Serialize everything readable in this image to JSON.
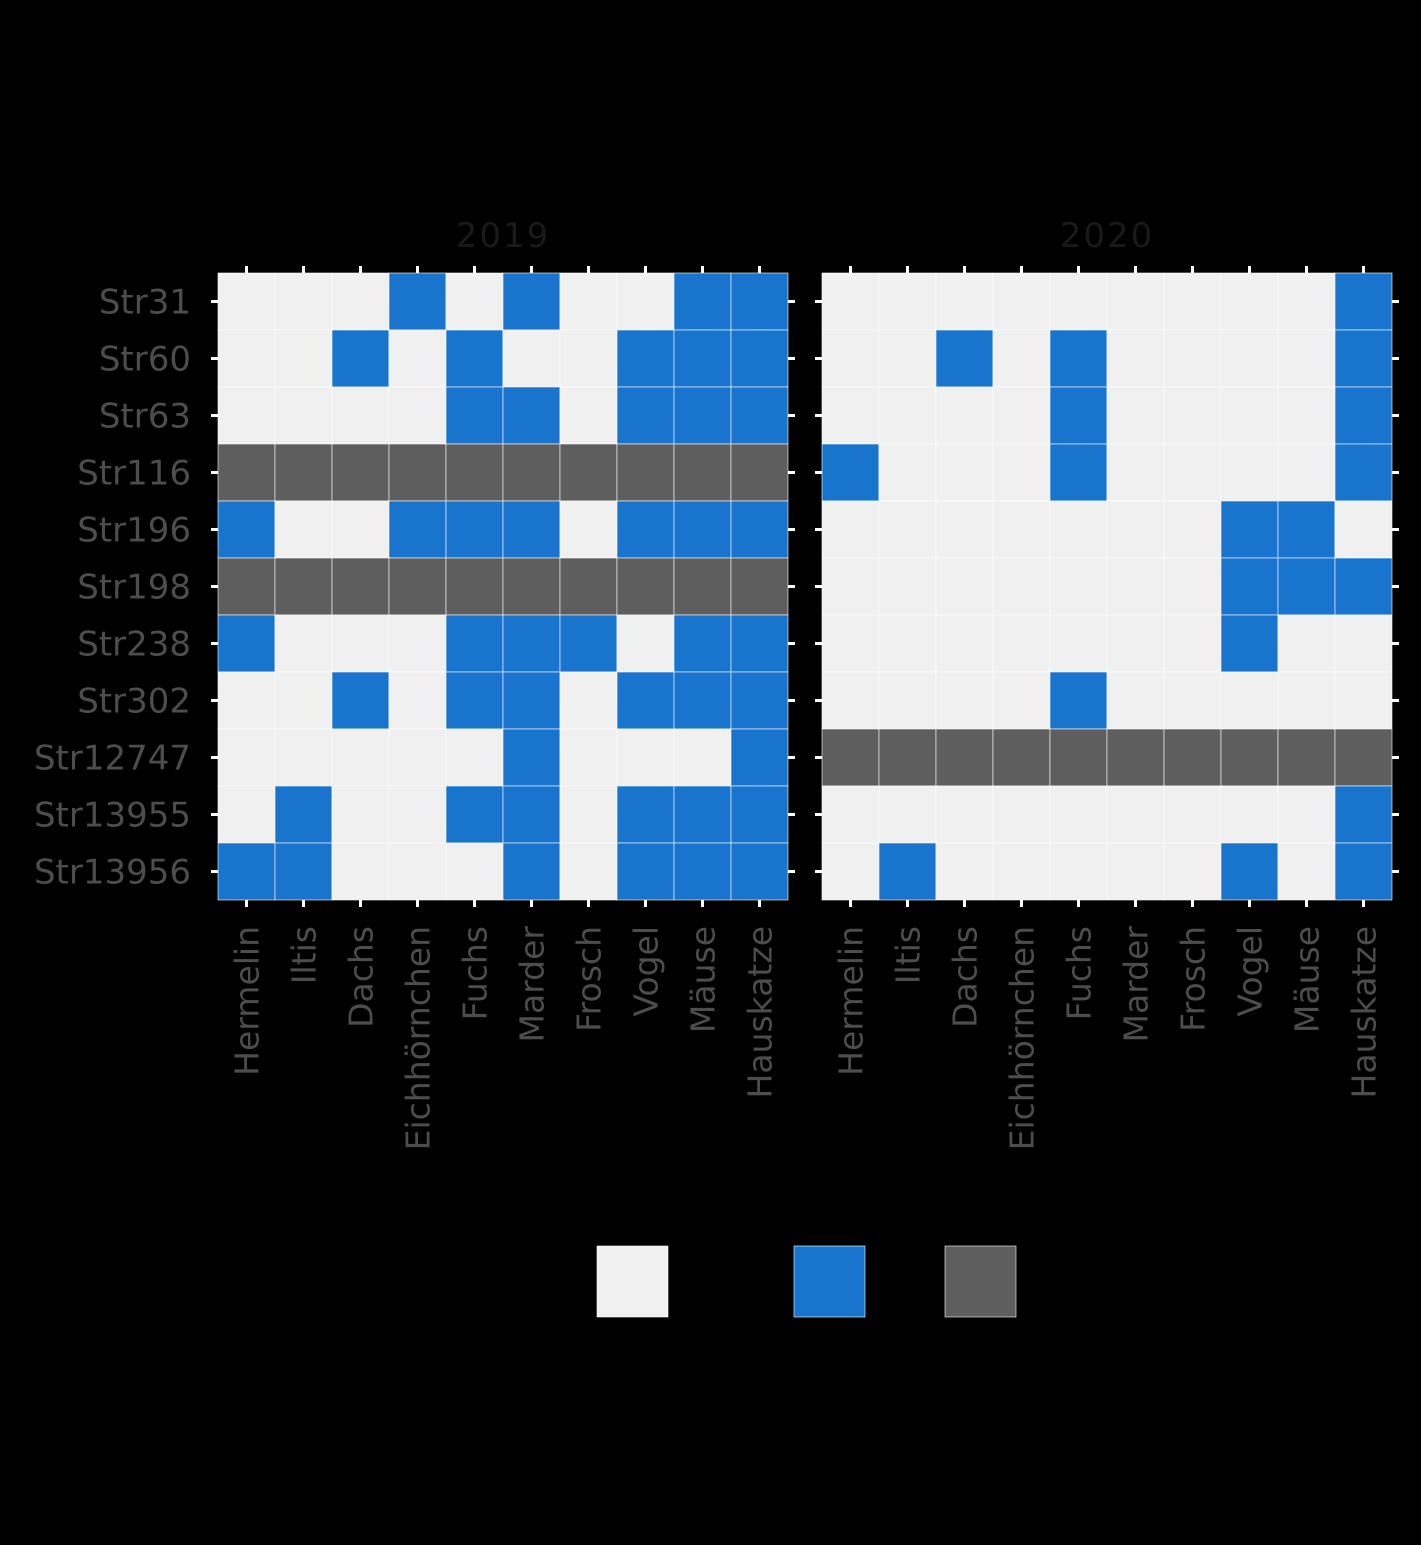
{
  "chart_data": {
    "type": "heatmap",
    "facets": [
      "2019",
      "2020"
    ],
    "rows": [
      "Str31",
      "Str60",
      "Str63",
      "Str116",
      "Str196",
      "Str198",
      "Str238",
      "Str302",
      "Str12747",
      "Str13955",
      "Str13956"
    ],
    "columns": [
      "Hermelin",
      "Iltis",
      "Dachs",
      "Eichhörnchen",
      "Fuchs",
      "Marder",
      "Frosch",
      "Vogel",
      "Mäuse",
      "Hauskatze"
    ],
    "values": {
      "2019": [
        [
          0,
          0,
          0,
          1,
          0,
          1,
          0,
          0,
          1,
          1
        ],
        [
          0,
          0,
          1,
          0,
          1,
          0,
          0,
          1,
          1,
          1
        ],
        [
          0,
          0,
          0,
          0,
          1,
          1,
          0,
          1,
          1,
          1
        ],
        [
          2,
          2,
          2,
          2,
          2,
          2,
          2,
          2,
          2,
          2
        ],
        [
          1,
          0,
          0,
          1,
          1,
          1,
          0,
          1,
          1,
          1
        ],
        [
          2,
          2,
          2,
          2,
          2,
          2,
          2,
          2,
          2,
          2
        ],
        [
          1,
          0,
          0,
          0,
          1,
          1,
          1,
          0,
          1,
          1
        ],
        [
          0,
          0,
          1,
          0,
          1,
          1,
          0,
          1,
          1,
          1
        ],
        [
          0,
          0,
          0,
          0,
          0,
          1,
          0,
          0,
          0,
          1
        ],
        [
          0,
          1,
          0,
          0,
          1,
          1,
          0,
          1,
          1,
          1
        ],
        [
          1,
          1,
          0,
          0,
          0,
          1,
          0,
          1,
          1,
          1
        ]
      ],
      "2020": [
        [
          0,
          0,
          0,
          0,
          0,
          0,
          0,
          0,
          0,
          1
        ],
        [
          0,
          0,
          1,
          0,
          1,
          0,
          0,
          0,
          0,
          1
        ],
        [
          0,
          0,
          0,
          0,
          1,
          0,
          0,
          0,
          0,
          1
        ],
        [
          1,
          0,
          0,
          0,
          1,
          0,
          0,
          0,
          0,
          1
        ],
        [
          0,
          0,
          0,
          0,
          0,
          0,
          0,
          1,
          1,
          0
        ],
        [
          0,
          0,
          0,
          0,
          0,
          0,
          0,
          1,
          1,
          1
        ],
        [
          0,
          0,
          0,
          0,
          0,
          0,
          0,
          1,
          0,
          0
        ],
        [
          0,
          0,
          0,
          0,
          1,
          0,
          0,
          0,
          0,
          0
        ],
        [
          2,
          2,
          2,
          2,
          2,
          2,
          2,
          2,
          2,
          2
        ],
        [
          0,
          0,
          0,
          0,
          0,
          0,
          0,
          0,
          0,
          1
        ],
        [
          0,
          1,
          0,
          0,
          0,
          0,
          0,
          1,
          0,
          1
        ]
      ]
    },
    "categories": [
      0,
      1,
      2
    ],
    "colors": {
      "0": "#f0f0f0",
      "1": "#1874cd",
      "2": "#5e5e5e"
    },
    "legend": {
      "placement": "bottom",
      "items": [
        {
          "key": 0,
          "label": ""
        },
        {
          "key": 1,
          "label": ""
        },
        {
          "key": 2,
          "label": ""
        }
      ]
    },
    "title": "",
    "xlabel": "",
    "ylabel": ""
  }
}
